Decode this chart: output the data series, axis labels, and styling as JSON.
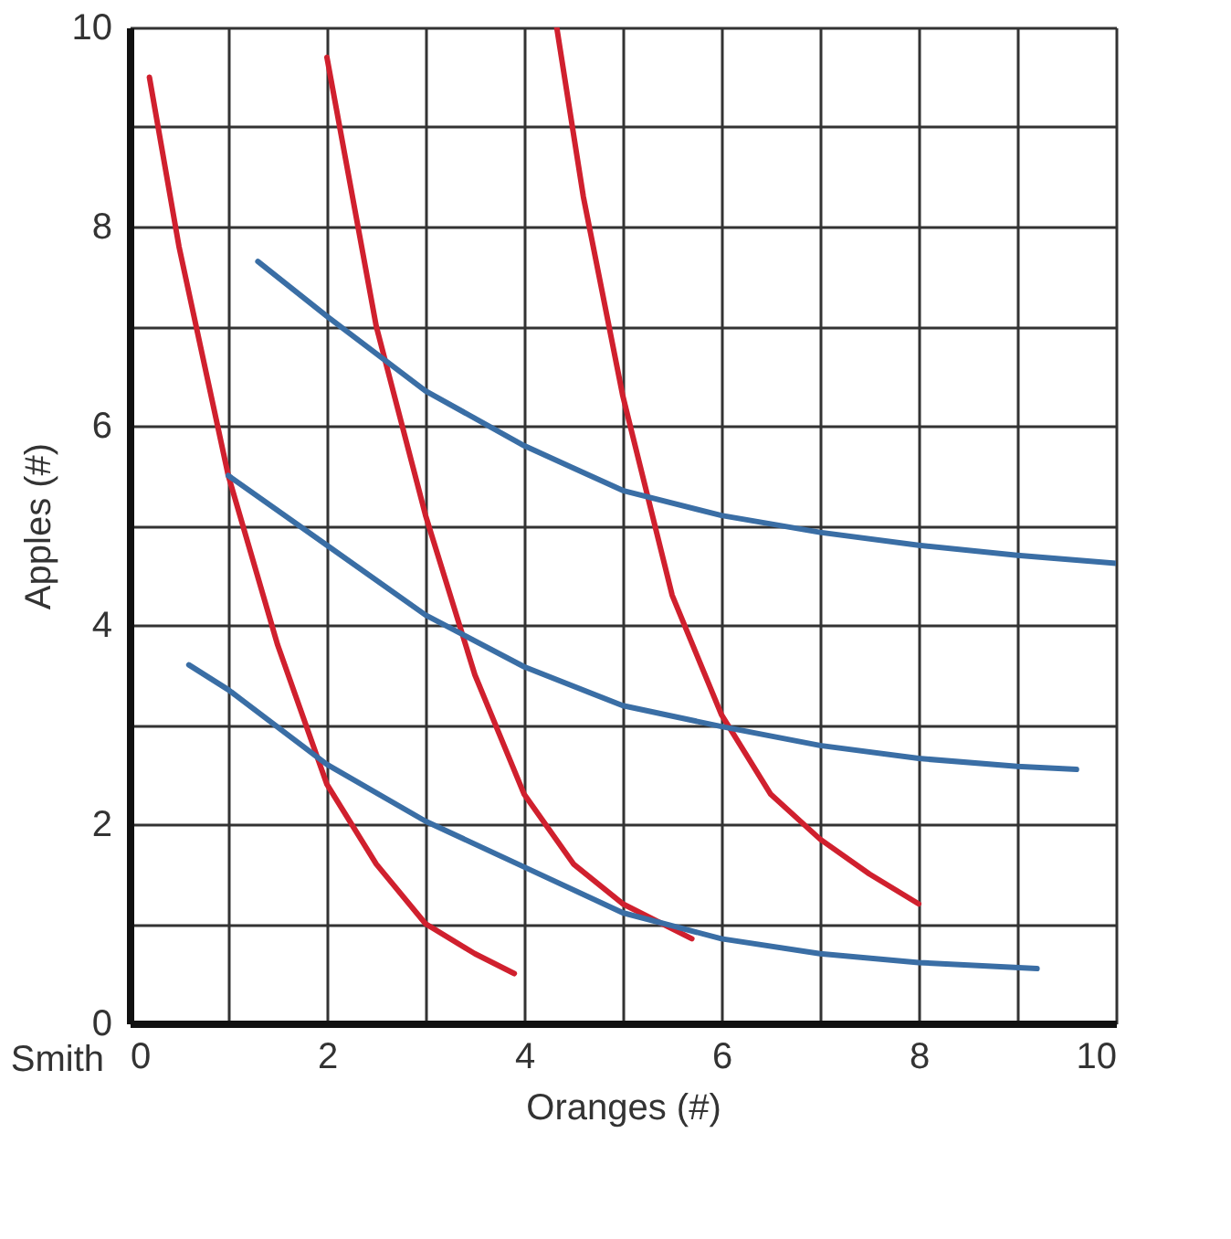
{
  "chart_data": {
    "type": "line",
    "xlabel": "Oranges (#)",
    "ylabel": "Apples (#)",
    "annotations": [
      "Smith"
    ],
    "xlim": [
      0,
      10
    ],
    "ylim": [
      0,
      10
    ],
    "xticks": [
      0,
      {
        "value": 1,
        "label": null
      },
      2,
      {
        "value": 3,
        "label": null
      },
      4,
      {
        "value": 5,
        "label": null
      },
      6,
      {
        "value": 7,
        "label": null
      },
      8,
      {
        "value": 9,
        "label": null
      },
      10
    ],
    "yticks": [
      0,
      {
        "value": 1,
        "label": null
      },
      2,
      {
        "value": 3,
        "label": null
      },
      4,
      {
        "value": 5,
        "label": null
      },
      6,
      {
        "value": 7,
        "label": null
      },
      8,
      {
        "value": 9,
        "label": null
      },
      10
    ],
    "grid": true,
    "legend": false,
    "marker": "none",
    "line_style": "solid",
    "series": [
      {
        "color": "#d0202e",
        "x": [
          0.2,
          0.5,
          1,
          1.5,
          2,
          2.5,
          3,
          3.5,
          3.9
        ],
        "values": [
          9.5,
          7.8,
          5.5,
          3.8,
          2.4,
          1.6,
          1.0,
          0.7,
          0.5
        ]
      },
      {
        "color": "#d0202e",
        "x": [
          2,
          2.5,
          3,
          3.5,
          4,
          4.5,
          5,
          5.7
        ],
        "values": [
          9.7,
          7.0,
          5.1,
          3.5,
          2.3,
          1.6,
          1.2,
          0.85
        ]
      },
      {
        "color": "#d0202e",
        "x": [
          4.33,
          4.6,
          5,
          5.5,
          6,
          6.5,
          7,
          7.5,
          8
        ],
        "values": [
          10,
          8.3,
          6.3,
          4.3,
          3.1,
          2.3,
          1.85,
          1.5,
          1.2
        ]
      },
      {
        "color": "#3a6ea5",
        "x": [
          1.3,
          2,
          3,
          4,
          5,
          6,
          7,
          8,
          9,
          10
        ],
        "values": [
          7.65,
          7.1,
          6.35,
          5.8,
          5.35,
          5.1,
          4.93,
          4.8,
          4.7,
          4.62
        ]
      },
      {
        "color": "#3a6ea5",
        "x": [
          1,
          2,
          3,
          4,
          5,
          6,
          7,
          8,
          9,
          9.6
        ],
        "values": [
          5.5,
          4.8,
          4.1,
          3.58,
          3.19,
          2.98,
          2.79,
          2.66,
          2.58,
          2.55
        ]
      },
      {
        "color": "#3a6ea5",
        "x": [
          0.6,
          1,
          2,
          3,
          4,
          5,
          6,
          7,
          8,
          9.2
        ],
        "values": [
          3.6,
          3.35,
          2.6,
          2.03,
          1.57,
          1.11,
          0.85,
          0.7,
          0.61,
          0.55
        ]
      }
    ]
  }
}
